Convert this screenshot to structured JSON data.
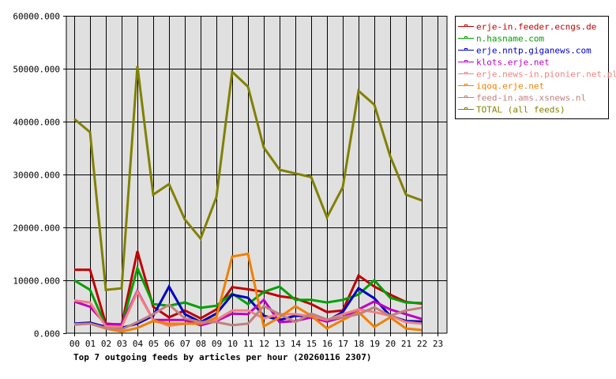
{
  "chart_data": {
    "type": "line",
    "title": "Top 7 outgoing feeds by articles per hour (20260116 2307)",
    "xlabel": "",
    "ylabel": "",
    "ylim": [
      0,
      60000
    ],
    "grid": true,
    "legend_position": "right",
    "x": [
      "00",
      "01",
      "02",
      "03",
      "04",
      "05",
      "06",
      "07",
      "08",
      "09",
      "10",
      "11",
      "12",
      "13",
      "14",
      "15",
      "16",
      "17",
      "18",
      "19",
      "20",
      "21",
      "22",
      "23"
    ],
    "y_ticks": [
      "0.000",
      "10000.000",
      "20000.000",
      "30000.000",
      "40000.000",
      "50000.000",
      "60000.000"
    ],
    "series": [
      {
        "name": "erje-in.feeder.ecngs.de",
        "color": "#c00000",
        "values": [
          12000,
          12000,
          1800,
          1600,
          15500,
          5000,
          3000,
          4300,
          2800,
          4500,
          8700,
          8300,
          7800,
          7000,
          6600,
          5500,
          4000,
          4300,
          10900,
          8800,
          7300,
          5900,
          5600
        ]
      },
      {
        "name": "n.hasname.com",
        "color": "#00a000",
        "values": [
          10000,
          8200,
          1400,
          1300,
          12300,
          5500,
          5200,
          5800,
          4800,
          5200,
          7500,
          5500,
          7800,
          8800,
          6300,
          6300,
          5800,
          6300,
          7300,
          10000,
          6700,
          5800,
          5700
        ]
      },
      {
        "name": "erje.nntp.giganews.com",
        "color": "#0000c0",
        "values": [
          1800,
          2000,
          1200,
          1000,
          1800,
          3300,
          8800,
          3600,
          2100,
          3700,
          7300,
          6700,
          3300,
          2500,
          3300,
          3200,
          2300,
          4000,
          8500,
          6600,
          3300,
          2300,
          2200
        ]
      },
      {
        "name": "klots.erje.net",
        "color": "#c000c0",
        "values": [
          6000,
          5000,
          1700,
          1700,
          8000,
          2500,
          2500,
          2500,
          1500,
          2300,
          3700,
          3600,
          6300,
          2100,
          2300,
          3000,
          2200,
          3000,
          4500,
          6000,
          4500,
          3600,
          2700
        ]
      },
      {
        "name": "erje.news-in.pionier.net.pl",
        "color": "#f08080",
        "values": [
          6200,
          5800,
          1300,
          1200,
          7800,
          2500,
          1400,
          1800,
          1800,
          2500,
          4300,
          4300,
          2800,
          3600,
          3600,
          3200,
          2500,
          3600,
          4500,
          4000,
          3300,
          2100,
          1800
        ]
      },
      {
        "name": "iqoq.erje.net",
        "color": "#f08000",
        "values": [
          1600,
          1800,
          900,
          300,
          1000,
          2300,
          1800,
          1800,
          1800,
          3000,
          14500,
          15000,
          1300,
          3000,
          5100,
          3300,
          900,
          2500,
          4000,
          1200,
          3000,
          900,
          600
        ]
      },
      {
        "name": "feed-in.ams.xsnews.nl",
        "color": "#c08080",
        "values": [
          1700,
          1800,
          1000,
          700,
          2100,
          3600,
          5400,
          2800,
          2100,
          2100,
          1500,
          1800,
          5100,
          3600,
          2100,
          3700,
          2600,
          3000,
          3600,
          4900,
          3300,
          4300,
          4800
        ]
      },
      {
        "name": "TOTAL (all feeds)",
        "color": "#808000",
        "values": [
          40500,
          38000,
          8200,
          8500,
          50500,
          26200,
          28200,
          21500,
          17900,
          25700,
          49400,
          46600,
          35100,
          30900,
          30200,
          29500,
          21900,
          27600,
          45800,
          43200,
          33500,
          26200,
          25100
        ]
      }
    ]
  },
  "legend": {
    "items": [
      {
        "label": "erje-in.feeder.ecngs.de",
        "color": "#c00000"
      },
      {
        "label": "n.hasname.com",
        "color": "#00a000"
      },
      {
        "label": "erje.nntp.giganews.com",
        "color": "#0000c0"
      },
      {
        "label": "klots.erje.net",
        "color": "#c000c0"
      },
      {
        "label": "erje.news-in.pionier.net.pl",
        "color": "#f08080"
      },
      {
        "label": "iqoq.erje.net",
        "color": "#f08000"
      },
      {
        "label": "feed-in.ams.xsnews.nl",
        "color": "#c08080"
      },
      {
        "label": "TOTAL (all feeds)",
        "color": "#808000"
      }
    ]
  },
  "style": {
    "plot_background": "#e0e0e0",
    "grid_color": "#000000",
    "axis_color": "#000000"
  }
}
